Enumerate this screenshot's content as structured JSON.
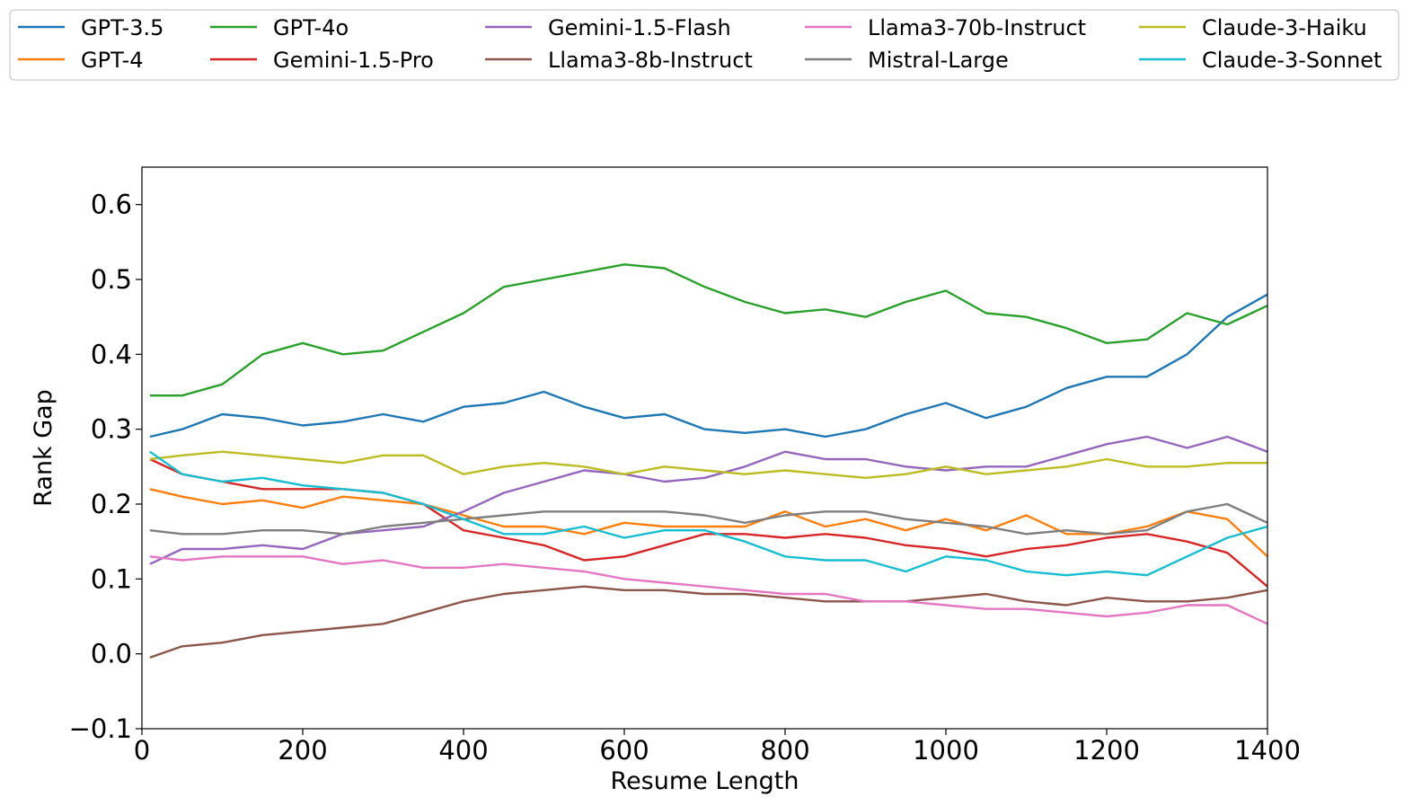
{
  "chart_data": {
    "type": "line",
    "title": "",
    "xlabel": "Resume Length",
    "ylabel": "Rank Gap",
    "xlim": [
      0,
      1400
    ],
    "ylim": [
      -0.1,
      0.65
    ],
    "xticks": [
      0,
      200,
      400,
      600,
      800,
      1000,
      1200,
      1400
    ],
    "yticks": [
      -0.1,
      0.0,
      0.1,
      0.2,
      0.3,
      0.4,
      0.5,
      0.6
    ],
    "ytick_labels": [
      "−0.1",
      "0.0",
      "0.1",
      "0.2",
      "0.3",
      "0.4",
      "0.5",
      "0.6"
    ],
    "grid": false,
    "legend_position": "top",
    "legend_columns": 5,
    "x": [
      10,
      50,
      100,
      150,
      200,
      250,
      300,
      350,
      400,
      450,
      500,
      550,
      600,
      650,
      700,
      750,
      800,
      850,
      900,
      950,
      1000,
      1050,
      1100,
      1150,
      1200,
      1250,
      1300,
      1350,
      1400
    ],
    "series": [
      {
        "name": "GPT-3.5",
        "color": "#1f77b4",
        "values": [
          0.29,
          0.3,
          0.32,
          0.315,
          0.305,
          0.31,
          0.32,
          0.31,
          0.33,
          0.335,
          0.35,
          0.33,
          0.315,
          0.32,
          0.3,
          0.295,
          0.3,
          0.29,
          0.3,
          0.32,
          0.335,
          0.315,
          0.33,
          0.355,
          0.37,
          0.37,
          0.4,
          0.45,
          0.48
        ]
      },
      {
        "name": "GPT-4",
        "color": "#ff7f0e",
        "values": [
          0.22,
          0.21,
          0.2,
          0.205,
          0.195,
          0.21,
          0.205,
          0.2,
          0.185,
          0.17,
          0.17,
          0.16,
          0.175,
          0.17,
          0.17,
          0.17,
          0.19,
          0.17,
          0.18,
          0.165,
          0.18,
          0.165,
          0.185,
          0.16,
          0.16,
          0.17,
          0.19,
          0.18,
          0.13
        ]
      },
      {
        "name": "GPT-4o",
        "color": "#2ca02c",
        "values": [
          0.345,
          0.345,
          0.36,
          0.4,
          0.415,
          0.4,
          0.405,
          0.43,
          0.455,
          0.49,
          0.5,
          0.51,
          0.52,
          0.515,
          0.49,
          0.47,
          0.455,
          0.46,
          0.45,
          0.47,
          0.485,
          0.455,
          0.45,
          0.435,
          0.415,
          0.42,
          0.455,
          0.44,
          0.465
        ]
      },
      {
        "name": "Gemini-1.5-Pro",
        "color": "#d62728",
        "values": [
          0.26,
          0.24,
          0.23,
          0.22,
          0.22,
          0.22,
          0.215,
          0.2,
          0.165,
          0.155,
          0.145,
          0.125,
          0.13,
          0.145,
          0.16,
          0.16,
          0.155,
          0.16,
          0.155,
          0.145,
          0.14,
          0.13,
          0.14,
          0.145,
          0.155,
          0.16,
          0.15,
          0.135,
          0.09
        ]
      },
      {
        "name": "Gemini-1.5-Flash",
        "color": "#9467bd",
        "values": [
          0.12,
          0.14,
          0.14,
          0.145,
          0.14,
          0.16,
          0.165,
          0.17,
          0.19,
          0.215,
          0.23,
          0.245,
          0.24,
          0.23,
          0.235,
          0.25,
          0.27,
          0.26,
          0.26,
          0.25,
          0.245,
          0.25,
          0.25,
          0.265,
          0.28,
          0.29,
          0.275,
          0.29,
          0.27
        ]
      },
      {
        "name": "Llama3-8b-Instruct",
        "color": "#8c564b",
        "values": [
          -0.005,
          0.01,
          0.015,
          0.025,
          0.03,
          0.035,
          0.04,
          0.055,
          0.07,
          0.08,
          0.085,
          0.09,
          0.085,
          0.085,
          0.08,
          0.08,
          0.075,
          0.07,
          0.07,
          0.07,
          0.075,
          0.08,
          0.07,
          0.065,
          0.075,
          0.07,
          0.07,
          0.075,
          0.085
        ]
      },
      {
        "name": "Llama3-70b-Instruct",
        "color": "#e377c2",
        "values": [
          0.13,
          0.125,
          0.13,
          0.13,
          0.13,
          0.12,
          0.125,
          0.115,
          0.115,
          0.12,
          0.115,
          0.11,
          0.1,
          0.095,
          0.09,
          0.085,
          0.08,
          0.08,
          0.07,
          0.07,
          0.065,
          0.06,
          0.06,
          0.055,
          0.05,
          0.055,
          0.065,
          0.065,
          0.04
        ]
      },
      {
        "name": "Mistral-Large",
        "color": "#7f7f7f",
        "values": [
          0.165,
          0.16,
          0.16,
          0.165,
          0.165,
          0.16,
          0.17,
          0.175,
          0.18,
          0.185,
          0.19,
          0.19,
          0.19,
          0.19,
          0.185,
          0.175,
          0.185,
          0.19,
          0.19,
          0.18,
          0.175,
          0.17,
          0.16,
          0.165,
          0.16,
          0.165,
          0.19,
          0.2,
          0.175
        ]
      },
      {
        "name": "Claude-3-Haiku",
        "color": "#bcbd22",
        "values": [
          0.26,
          0.265,
          0.27,
          0.265,
          0.26,
          0.255,
          0.265,
          0.265,
          0.24,
          0.25,
          0.255,
          0.25,
          0.24,
          0.25,
          0.245,
          0.24,
          0.245,
          0.24,
          0.235,
          0.24,
          0.25,
          0.24,
          0.245,
          0.25,
          0.26,
          0.25,
          0.25,
          0.255,
          0.255
        ]
      },
      {
        "name": "Claude-3-Sonnet",
        "color": "#17becf",
        "values": [
          0.27,
          0.24,
          0.23,
          0.235,
          0.225,
          0.22,
          0.215,
          0.2,
          0.18,
          0.16,
          0.16,
          0.17,
          0.155,
          0.165,
          0.165,
          0.15,
          0.13,
          0.125,
          0.125,
          0.11,
          0.13,
          0.125,
          0.11,
          0.105,
          0.11,
          0.105,
          0.13,
          0.155,
          0.17
        ]
      }
    ]
  }
}
